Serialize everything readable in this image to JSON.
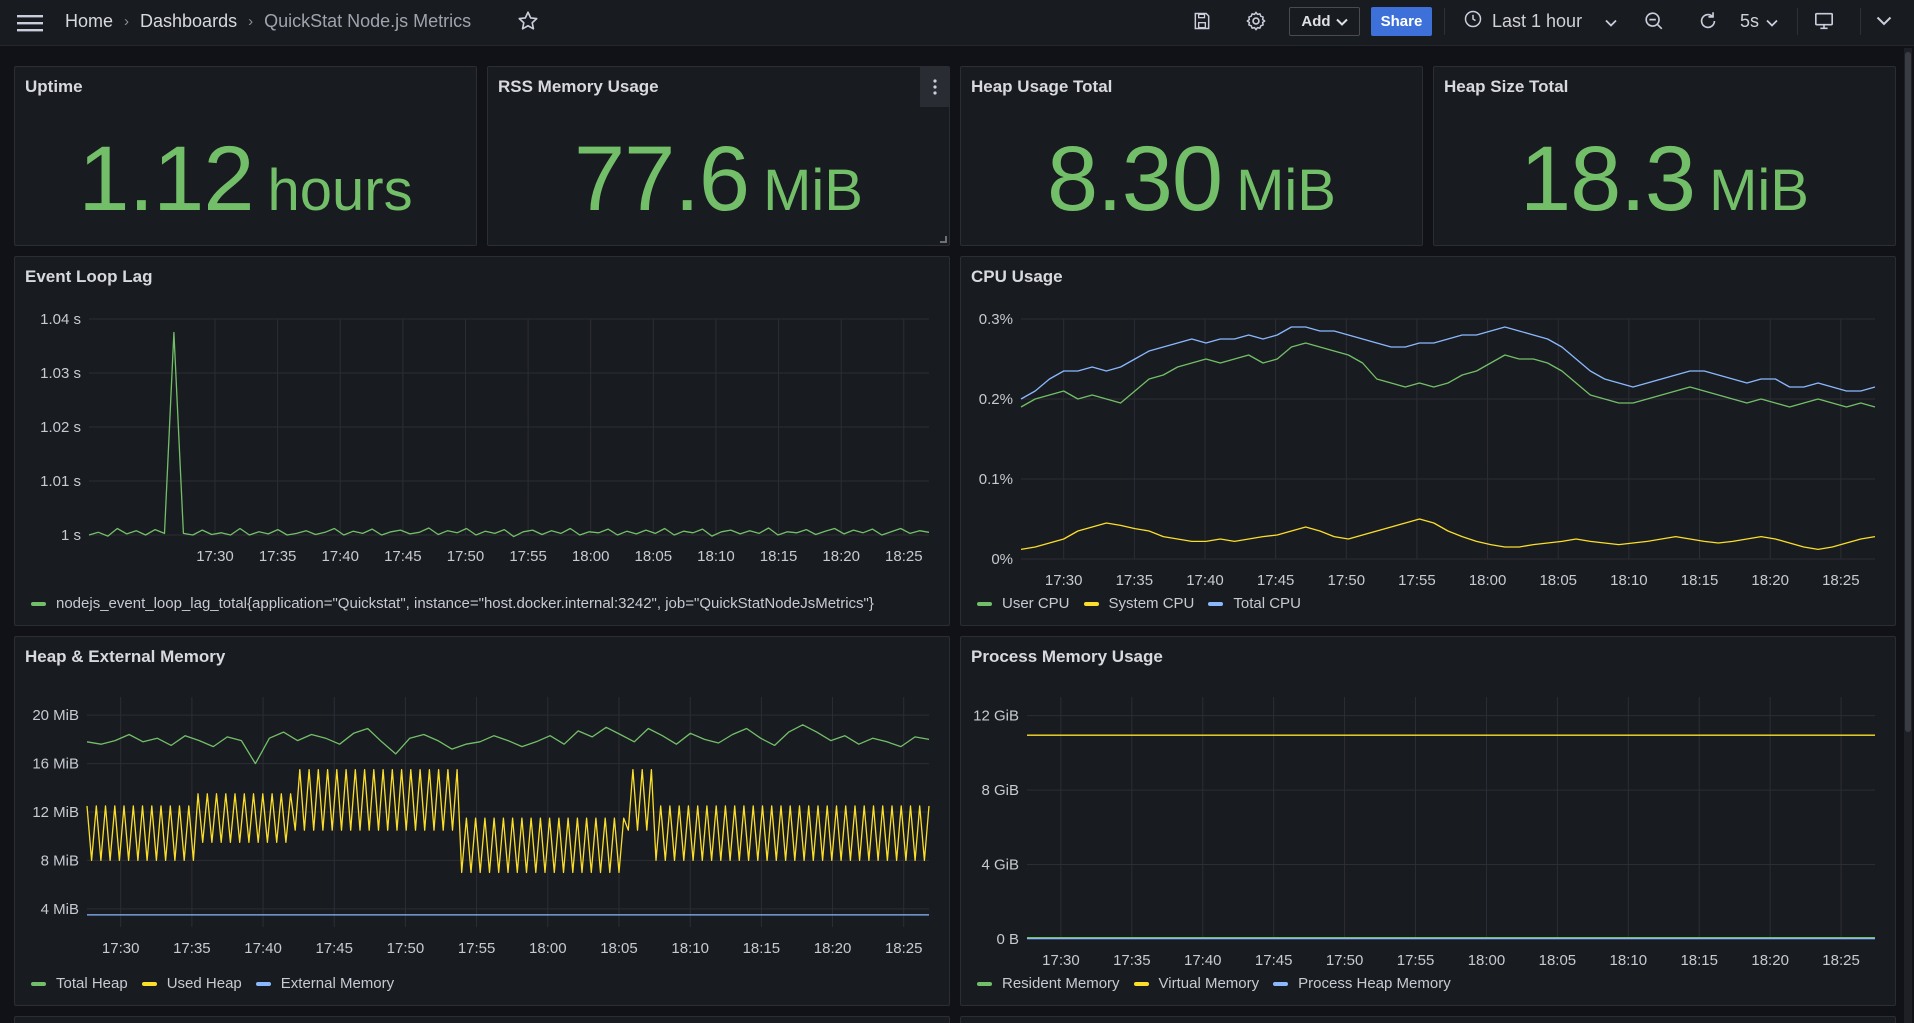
{
  "breadcrumb": {
    "home": "Home",
    "dashboards": "Dashboards",
    "current": "QuickStat Node.js Metrics"
  },
  "toolbar": {
    "add_label": "Add",
    "share_label": "Share",
    "time_range": "Last 1 hour",
    "refresh_interval": "5s"
  },
  "colors": {
    "green": "#73bf69",
    "yellow": "#fade2a",
    "blue": "#8ab8ff",
    "accent": "#3d71d9"
  },
  "stats": [
    {
      "title": "Uptime",
      "value": "1.12",
      "unit": "hours"
    },
    {
      "title": "RSS Memory Usage",
      "value": "77.6",
      "unit": "MiB"
    },
    {
      "title": "Heap Usage Total",
      "value": "8.30",
      "unit": "MiB"
    },
    {
      "title": "Heap Size Total",
      "value": "18.3",
      "unit": "MiB"
    }
  ],
  "chart_data": [
    {
      "type": "line",
      "title": "Event Loop Lag",
      "x_ticks": [
        "17:30",
        "17:35",
        "17:40",
        "17:45",
        "17:50",
        "17:55",
        "18:00",
        "18:05",
        "18:10",
        "18:15",
        "18:20",
        "18:25"
      ],
      "y_ticks": [
        "1 s",
        "1.01 s",
        "1.02 s",
        "1.03 s",
        "1.04 s"
      ],
      "ylim": [
        1.0,
        1.04
      ],
      "series": [
        {
          "name": "nodejs_event_loop_lag_total{application=\"Quickstat\", instance=\"host.docker.internal:3242\", job=\"QuickStatNodeJsMetrics\"}",
          "color": "green",
          "values": [
            1.0,
            1.0005,
            0.9998,
            1.0012,
            1.0002,
            1.0008,
            1.0,
            1.001,
            1.0003,
            1.0375,
            1.0003,
            1.0,
            1.0009,
            1.0001,
            1.0004,
            1.0,
            1.0012,
            1.0,
            1.0006,
            1.0002,
            1.001,
            1.0,
            1.0003,
            1.0008,
            1.0001,
            1.0005,
            1.0012,
            1.0,
            1.0007,
            1.0003,
            1.0011,
            1.0,
            1.0006,
            1.0009,
            1.0002,
            1.0005,
            1.0013,
            1.0001,
            1.0008,
            1.0004,
            1.0012,
            1.0,
            1.0007,
            1.0003,
            1.001,
            0.9997,
            1.0006,
            1.0009,
            1.0001,
            1.0008,
            1.0003,
            1.0012,
            1.0,
            1.0006,
            1.0004,
            1.0011,
            1.0,
            1.0007,
            1.0002,
            1.0009,
            1.0003,
            1.0012,
            1.0,
            1.0007,
            1.0004,
            1.0011,
            0.9998,
            1.0006,
            1.0009,
            1.0002,
            1.0008,
            1.0003,
            1.0013,
            1.0,
            1.0006,
            1.0004,
            1.001,
            1.0001,
            1.0007,
            1.0012,
            1.0002,
            1.0009,
            1.0004,
            1.0011,
            1.0,
            1.0006,
            1.0012,
            1.0003,
            1.0008,
            1.0005
          ]
        }
      ]
    },
    {
      "type": "line",
      "title": "CPU Usage",
      "x_ticks": [
        "17:30",
        "17:35",
        "17:40",
        "17:45",
        "17:50",
        "17:55",
        "18:00",
        "18:05",
        "18:10",
        "18:15",
        "18:20",
        "18:25"
      ],
      "y_ticks": [
        "0%",
        "0.1%",
        "0.2%",
        "0.3%"
      ],
      "ylim": [
        0,
        0.3
      ],
      "series": [
        {
          "name": "User CPU",
          "color": "green",
          "values": [
            0.19,
            0.2,
            0.205,
            0.21,
            0.2,
            0.205,
            0.2,
            0.195,
            0.21,
            0.225,
            0.23,
            0.24,
            0.245,
            0.25,
            0.245,
            0.25,
            0.255,
            0.245,
            0.25,
            0.265,
            0.27,
            0.265,
            0.26,
            0.255,
            0.245,
            0.225,
            0.22,
            0.215,
            0.22,
            0.215,
            0.22,
            0.23,
            0.235,
            0.245,
            0.255,
            0.25,
            0.25,
            0.245,
            0.235,
            0.22,
            0.205,
            0.2,
            0.195,
            0.195,
            0.2,
            0.205,
            0.21,
            0.215,
            0.21,
            0.205,
            0.2,
            0.195,
            0.2,
            0.195,
            0.19,
            0.195,
            0.2,
            0.195,
            0.19,
            0.195,
            0.19
          ]
        },
        {
          "name": "System CPU",
          "color": "yellow",
          "values": [
            0.012,
            0.015,
            0.02,
            0.025,
            0.035,
            0.04,
            0.045,
            0.042,
            0.038,
            0.035,
            0.028,
            0.025,
            0.022,
            0.022,
            0.025,
            0.022,
            0.025,
            0.028,
            0.03,
            0.035,
            0.04,
            0.035,
            0.028,
            0.025,
            0.03,
            0.035,
            0.04,
            0.045,
            0.05,
            0.045,
            0.035,
            0.028,
            0.022,
            0.018,
            0.015,
            0.015,
            0.018,
            0.02,
            0.022,
            0.025,
            0.022,
            0.02,
            0.018,
            0.02,
            0.022,
            0.025,
            0.028,
            0.025,
            0.022,
            0.02,
            0.022,
            0.025,
            0.028,
            0.025,
            0.02,
            0.015,
            0.012,
            0.015,
            0.02,
            0.025,
            0.028
          ]
        },
        {
          "name": "Total CPU",
          "color": "blue",
          "values": [
            0.2,
            0.21,
            0.225,
            0.235,
            0.235,
            0.24,
            0.235,
            0.24,
            0.25,
            0.26,
            0.265,
            0.27,
            0.275,
            0.27,
            0.275,
            0.275,
            0.28,
            0.275,
            0.28,
            0.29,
            0.29,
            0.285,
            0.285,
            0.28,
            0.275,
            0.27,
            0.265,
            0.265,
            0.27,
            0.27,
            0.275,
            0.28,
            0.28,
            0.285,
            0.29,
            0.285,
            0.28,
            0.275,
            0.265,
            0.25,
            0.235,
            0.225,
            0.22,
            0.215,
            0.22,
            0.225,
            0.23,
            0.235,
            0.235,
            0.23,
            0.225,
            0.22,
            0.225,
            0.225,
            0.215,
            0.215,
            0.22,
            0.215,
            0.21,
            0.21,
            0.215
          ]
        }
      ]
    },
    {
      "type": "line",
      "title": "Heap & External Memory",
      "x_ticks": [
        "17:30",
        "17:35",
        "17:40",
        "17:45",
        "17:50",
        "17:55",
        "18:00",
        "18:05",
        "18:10",
        "18:15",
        "18:20",
        "18:25"
      ],
      "y_ticks": [
        "4 MiB",
        "8 MiB",
        "12 MiB",
        "16 MiB",
        "20 MiB"
      ],
      "ylim": [
        2.5,
        21.5
      ],
      "series": [
        {
          "name": "Total Heap",
          "color": "green",
          "values": [
            17.8,
            17.6,
            17.9,
            18.4,
            17.8,
            18.1,
            17.5,
            18.3,
            17.9,
            17.4,
            18.2,
            17.9,
            16.0,
            18.1,
            18.6,
            17.9,
            18.4,
            18.1,
            17.6,
            18.5,
            18.9,
            17.8,
            16.8,
            18.1,
            18.4,
            17.9,
            17.2,
            17.6,
            17.8,
            18.3,
            17.9,
            17.4,
            17.8,
            18.3,
            17.6,
            18.7,
            18.2,
            19.0,
            18.4,
            17.8,
            18.9,
            18.3,
            17.6,
            18.5,
            18.0,
            17.7,
            18.4,
            18.9,
            18.1,
            17.5,
            18.6,
            19.2,
            18.6,
            17.9,
            18.3,
            17.6,
            18.1,
            17.8,
            17.4,
            18.2,
            18.0
          ]
        },
        {
          "name": "Used Heap",
          "color": "yellow",
          "low": [
            8.0,
            8.0,
            8.0,
            8.0,
            8.0,
            8.0,
            8.0,
            8.0,
            9.5,
            9.5,
            9.5,
            9.5,
            9.5,
            9.5,
            9.5,
            10.5,
            10.5,
            10.5,
            10.5,
            10.5,
            10.5,
            10.5,
            10.5,
            10.5,
            10.5,
            10.5,
            10.5,
            7.0,
            7.0,
            7.0,
            7.0,
            7.0,
            7.0,
            7.0,
            7.0,
            7.0,
            7.0,
            7.0,
            7.0,
            10.5,
            10.5,
            8.0,
            8.0,
            8.0,
            8.0,
            8.0,
            8.0,
            8.0,
            8.0,
            8.0,
            8.0,
            8.0,
            8.0,
            8.0,
            8.0,
            8.0,
            8.0,
            8.0,
            8.0,
            8.0,
            8.0
          ],
          "high": [
            12.5,
            12.5,
            12.5,
            12.5,
            12.5,
            12.5,
            12.5,
            12.5,
            13.5,
            13.5,
            13.5,
            13.5,
            13.5,
            13.5,
            13.5,
            15.5,
            15.5,
            15.5,
            15.5,
            15.5,
            15.5,
            15.5,
            15.5,
            15.5,
            15.5,
            15.5,
            15.5,
            11.5,
            11.5,
            11.5,
            11.5,
            11.5,
            11.5,
            11.5,
            11.5,
            11.5,
            11.5,
            11.5,
            11.5,
            15.5,
            15.5,
            12.5,
            12.5,
            12.5,
            12.5,
            12.5,
            12.5,
            12.5,
            12.5,
            12.5,
            12.5,
            12.5,
            12.5,
            12.5,
            12.5,
            12.5,
            12.5,
            12.5,
            12.5,
            12.5,
            12.5
          ]
        },
        {
          "name": "External Memory",
          "color": "blue",
          "constant": 3.5
        }
      ]
    },
    {
      "type": "line",
      "title": "Process Memory Usage",
      "x_ticks": [
        "17:30",
        "17:35",
        "17:40",
        "17:45",
        "17:50",
        "17:55",
        "18:00",
        "18:05",
        "18:10",
        "18:15",
        "18:20",
        "18:25"
      ],
      "y_ticks": [
        "0 B",
        "4 GiB",
        "8 GiB",
        "12 GiB"
      ],
      "ylim": [
        0,
        13
      ],
      "series": [
        {
          "name": "Resident Memory",
          "color": "green",
          "constant": 0.07
        },
        {
          "name": "Virtual Memory",
          "color": "yellow",
          "constant": 10.95
        },
        {
          "name": "Process Heap Memory",
          "color": "blue",
          "constant": 0.02
        }
      ]
    }
  ]
}
